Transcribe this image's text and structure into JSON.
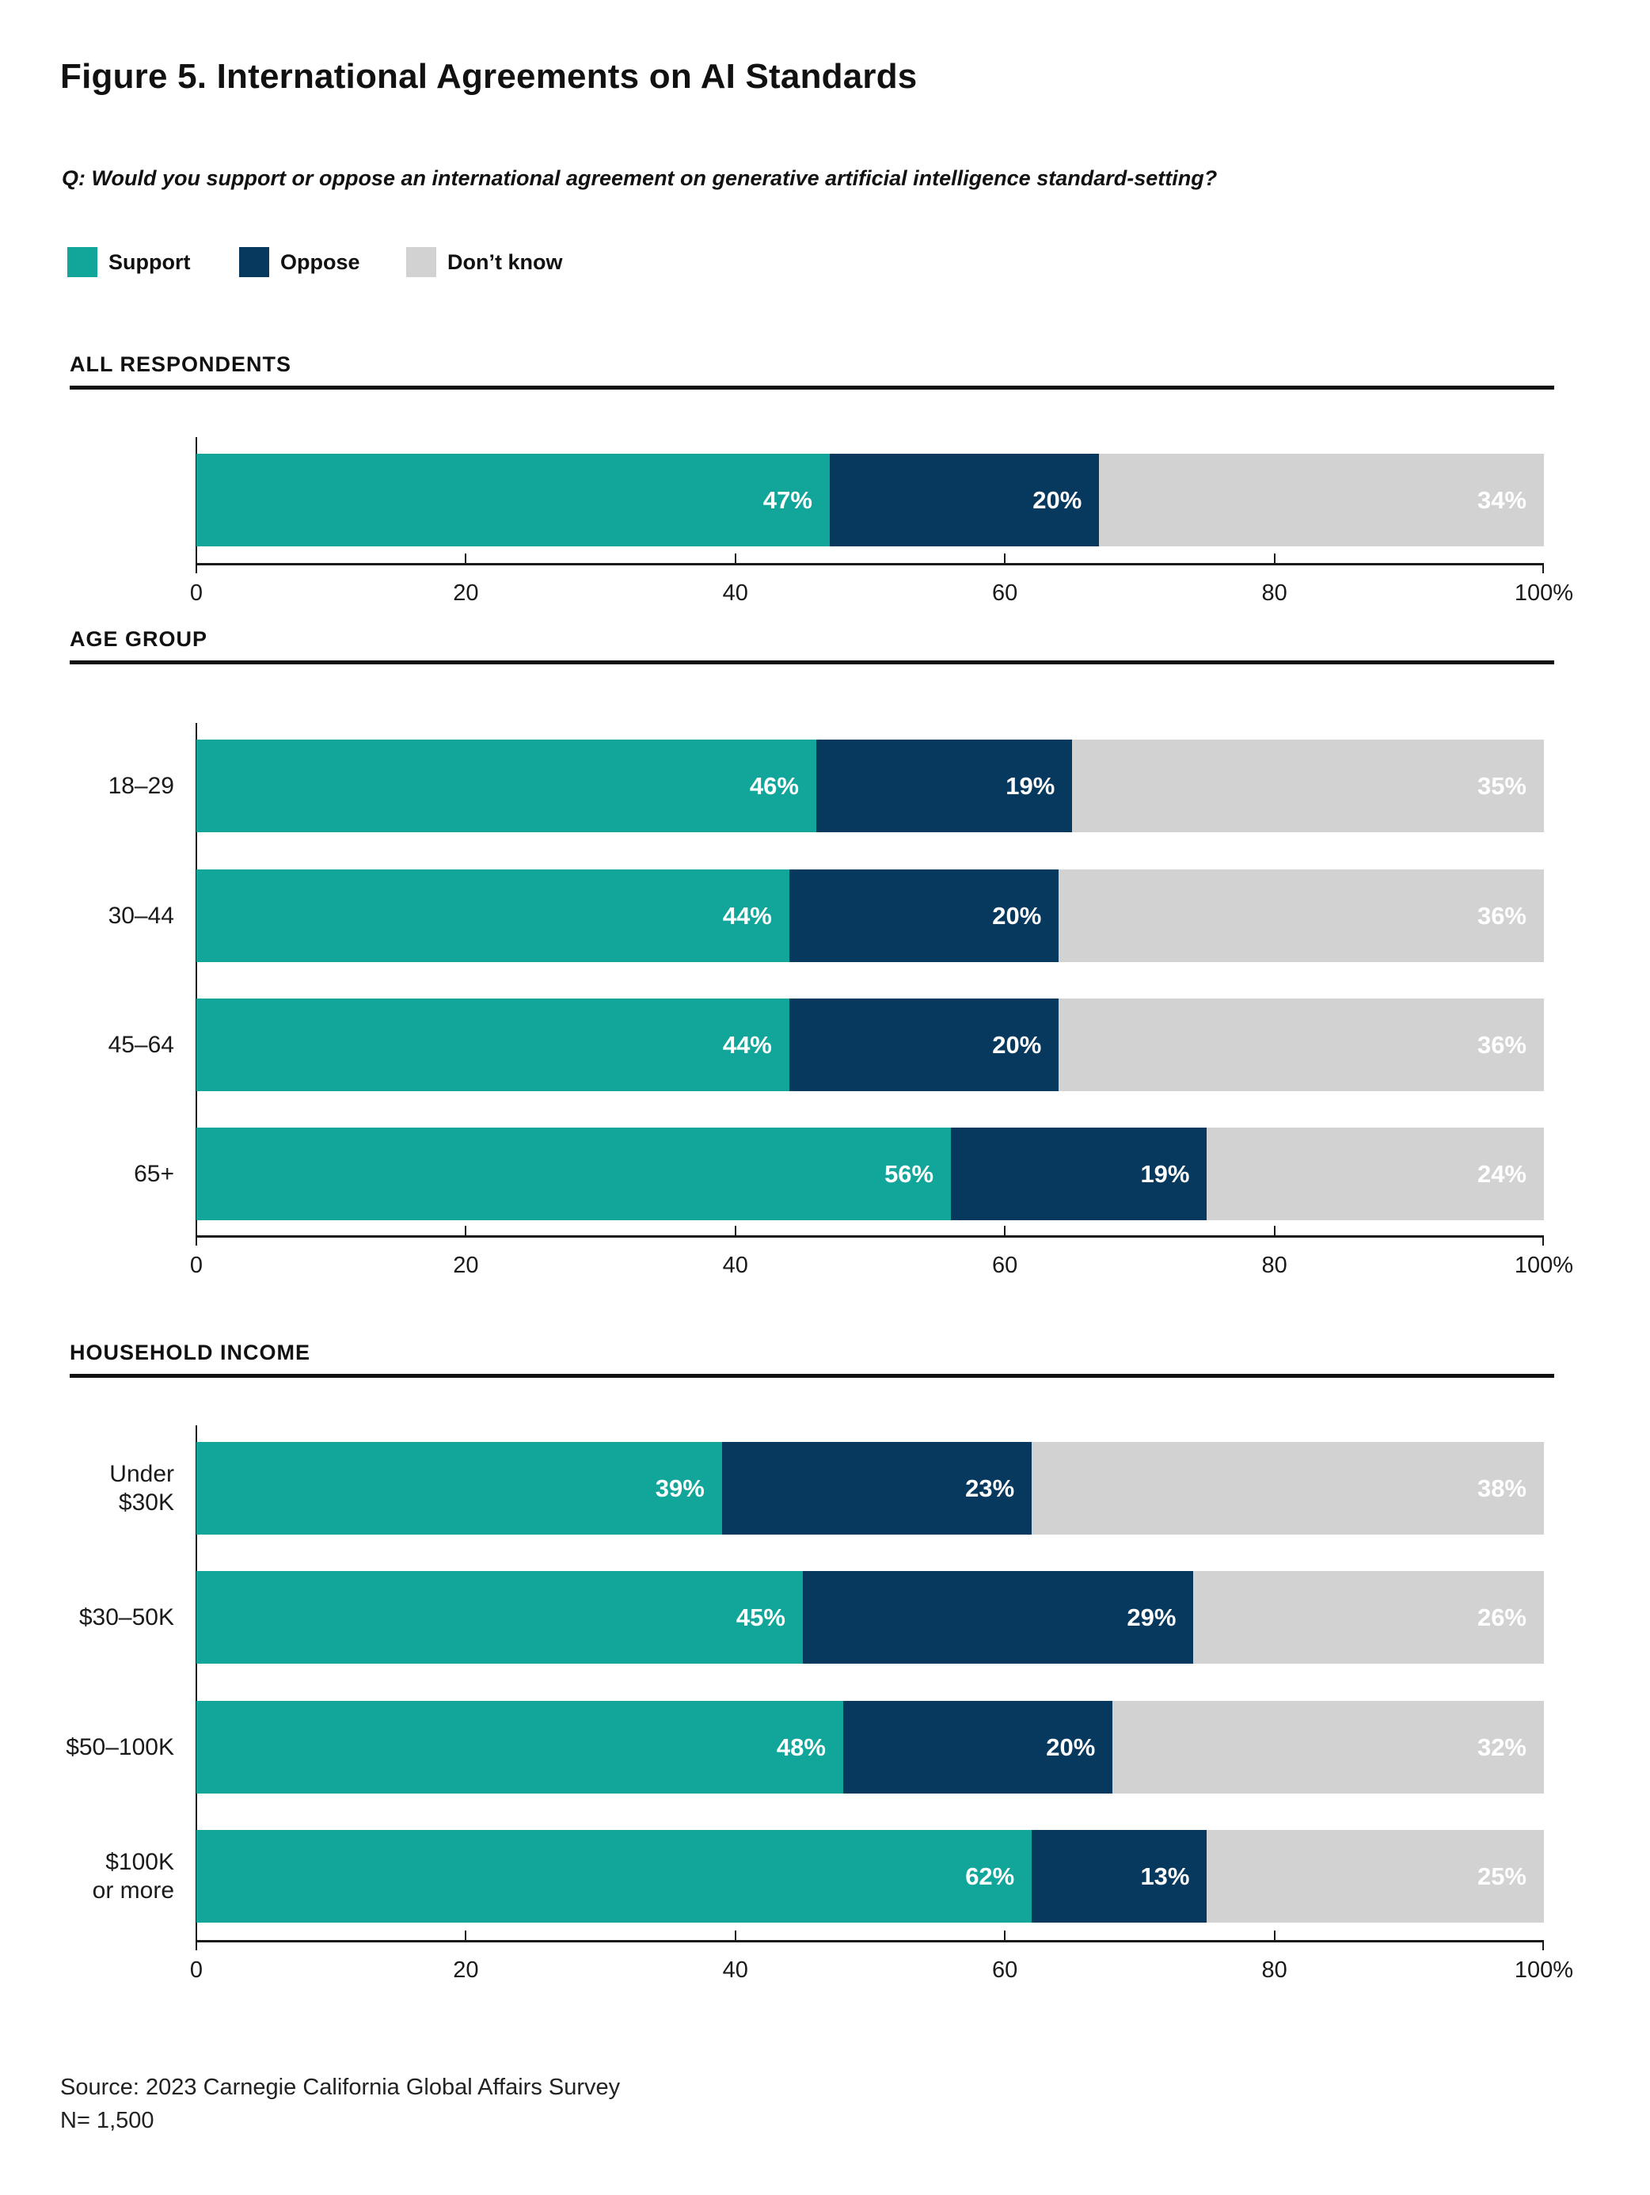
{
  "title": "Figure 5. International Agreements on AI Standards",
  "question": "Q: Would you support or oppose an international agreement on generative artificial intelligence standard-setting?",
  "colors": {
    "support": "#12A69B",
    "oppose": "#07395F",
    "dont_know": "#D2D2D2",
    "text": "#1A1A1A"
  },
  "legend": [
    {
      "label": "Support",
      "key": "support"
    },
    {
      "label": "Oppose",
      "key": "oppose"
    },
    {
      "label": "Don’t know",
      "key": "dont_know"
    }
  ],
  "axis": {
    "ticks": [
      "0",
      "20",
      "40",
      "60",
      "80",
      "100%"
    ],
    "values": [
      0,
      20,
      40,
      60,
      80,
      100
    ],
    "xlim": [
      0,
      100
    ],
    "grid": false
  },
  "chart_data": [
    {
      "type": "bar",
      "orientation": "horizontal",
      "stacked": true,
      "section": "ALL RESPONDENTS",
      "categories": [
        ""
      ],
      "series": [
        {
          "name": "Support",
          "values": [
            47
          ]
        },
        {
          "name": "Oppose",
          "values": [
            20
          ]
        },
        {
          "name": "Don’t know",
          "values": [
            34
          ]
        }
      ],
      "xlim": [
        0,
        100
      ]
    },
    {
      "type": "bar",
      "orientation": "horizontal",
      "stacked": true,
      "section": "AGE GROUP",
      "categories": [
        "18–29",
        "30–44",
        "45–64",
        "65+"
      ],
      "series": [
        {
          "name": "Support",
          "values": [
            46,
            44,
            44,
            56
          ]
        },
        {
          "name": "Oppose",
          "values": [
            19,
            20,
            20,
            19
          ]
        },
        {
          "name": "Don’t know",
          "values": [
            35,
            36,
            36,
            24
          ]
        }
      ],
      "xlim": [
        0,
        100
      ]
    },
    {
      "type": "bar",
      "orientation": "horizontal",
      "stacked": true,
      "section": "HOUSEHOLD INCOME",
      "categories": [
        "Under $30K",
        "$30–50K",
        "$50–100K",
        "$100K\nor more"
      ],
      "series": [
        {
          "name": "Support",
          "values": [
            39,
            45,
            48,
            62
          ]
        },
        {
          "name": "Oppose",
          "values": [
            23,
            29,
            20,
            13
          ]
        },
        {
          "name": "Don’t know",
          "values": [
            38,
            26,
            32,
            25
          ]
        }
      ],
      "xlim": [
        0,
        100
      ]
    }
  ],
  "source": {
    "line1": "Source: 2023 Carnegie California Global Affairs Survey",
    "line2": "N= 1,500"
  }
}
